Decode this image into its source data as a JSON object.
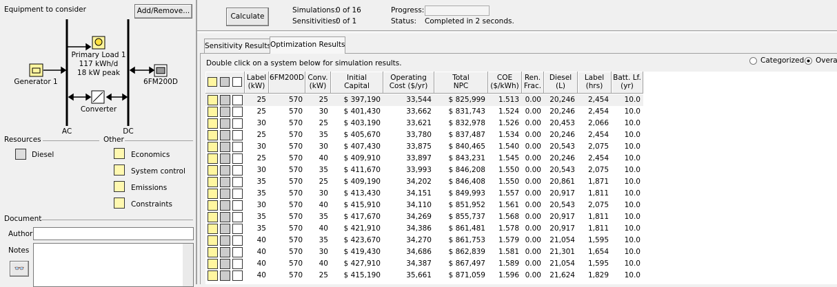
{
  "equipment": {
    "title": "Equipment to consider",
    "button": "Add/Remove...",
    "load": {
      "name": "Primary Load 1",
      "energy": "117 kWh/d",
      "peak": "18 kW peak"
    },
    "generator": "Generator 1",
    "battery": "6FM200D",
    "converter": "Converter",
    "ac": "AC",
    "dc": "DC"
  },
  "resources": {
    "title": "Resources",
    "items": [
      "Diesel"
    ]
  },
  "other": {
    "title": "Other",
    "items": [
      "Economics",
      "System control",
      "Emissions",
      "Constraints"
    ]
  },
  "document": {
    "title": "Document",
    "author_label": "Author",
    "notes_label": "Notes"
  },
  "toolbar": {
    "button": "Calculate",
    "simulations_label": "Simulations:",
    "simulations": "0 of 16",
    "sensitivities_label": "Sensitivities:",
    "sensitivities": "0 of 1",
    "progress_label": "Progress:",
    "status_label": "Status:",
    "status": "Completed in 2 seconds."
  },
  "tabs": [
    "Sensitivity Results",
    "Optimization Results"
  ],
  "instruction": "Double click on a system below for simulation results.",
  "view_options": [
    "Categorized",
    "Overall"
  ],
  "table": {
    "headers": [
      [
        "Label",
        "(kW)"
      ],
      [
        "6FM200D"
      ],
      [
        "Conv.",
        "(kW)"
      ],
      [
        "Initial",
        "Capital"
      ],
      [
        "Operating",
        "Cost ($/yr)"
      ],
      [
        "Total",
        "NPC"
      ],
      [
        "COE",
        "($/kWh)"
      ],
      [
        "Ren.",
        "Frac."
      ],
      [
        "Diesel",
        "(L)"
      ],
      [
        "Label",
        "(hrs)"
      ],
      [
        "Batt. Lf.",
        "(yr)"
      ]
    ],
    "rows": [
      [
        "25",
        "570",
        "25",
        "$ 397,190",
        "33,544",
        "$ 825,999",
        "1.513",
        "0.00",
        "20,246",
        "2,454",
        "10.0"
      ],
      [
        "25",
        "570",
        "30",
        "$ 401,430",
        "33,662",
        "$ 831,743",
        "1.524",
        "0.00",
        "20,246",
        "2,454",
        "10.0"
      ],
      [
        "30",
        "570",
        "25",
        "$ 403,190",
        "33,621",
        "$ 832,978",
        "1.526",
        "0.00",
        "20,453",
        "2,066",
        "10.0"
      ],
      [
        "25",
        "570",
        "35",
        "$ 405,670",
        "33,780",
        "$ 837,487",
        "1.534",
        "0.00",
        "20,246",
        "2,454",
        "10.0"
      ],
      [
        "30",
        "570",
        "30",
        "$ 407,430",
        "33,875",
        "$ 840,465",
        "1.540",
        "0.00",
        "20,543",
        "2,075",
        "10.0"
      ],
      [
        "25",
        "570",
        "40",
        "$ 409,910",
        "33,897",
        "$ 843,231",
        "1.545",
        "0.00",
        "20,246",
        "2,454",
        "10.0"
      ],
      [
        "30",
        "570",
        "35",
        "$ 411,670",
        "33,993",
        "$ 846,208",
        "1.550",
        "0.00",
        "20,543",
        "2,075",
        "10.0"
      ],
      [
        "35",
        "570",
        "25",
        "$ 409,190",
        "34,202",
        "$ 846,408",
        "1.550",
        "0.00",
        "20,861",
        "1,871",
        "10.0"
      ],
      [
        "35",
        "570",
        "30",
        "$ 413,430",
        "34,151",
        "$ 849,993",
        "1.557",
        "0.00",
        "20,917",
        "1,811",
        "10.0"
      ],
      [
        "30",
        "570",
        "40",
        "$ 415,910",
        "34,110",
        "$ 851,952",
        "1.561",
        "0.00",
        "20,543",
        "2,075",
        "10.0"
      ],
      [
        "35",
        "570",
        "35",
        "$ 417,670",
        "34,269",
        "$ 855,737",
        "1.568",
        "0.00",
        "20,917",
        "1,811",
        "10.0"
      ],
      [
        "35",
        "570",
        "40",
        "$ 421,910",
        "34,386",
        "$ 861,481",
        "1.578",
        "0.00",
        "20,917",
        "1,811",
        "10.0"
      ],
      [
        "40",
        "570",
        "35",
        "$ 423,670",
        "34,270",
        "$ 861,753",
        "1.579",
        "0.00",
        "21,054",
        "1,595",
        "10.0"
      ],
      [
        "40",
        "570",
        "30",
        "$ 419,430",
        "34,686",
        "$ 862,839",
        "1.581",
        "0.00",
        "21,301",
        "1,654",
        "10.0"
      ],
      [
        "40",
        "570",
        "40",
        "$ 427,910",
        "34,387",
        "$ 867,497",
        "1.589",
        "0.00",
        "21,054",
        "1,595",
        "10.0"
      ],
      [
        "40",
        "570",
        "25",
        "$ 415,190",
        "35,661",
        "$ 871,059",
        "1.596",
        "0.00",
        "21,624",
        "1,829",
        "10.0"
      ]
    ]
  }
}
